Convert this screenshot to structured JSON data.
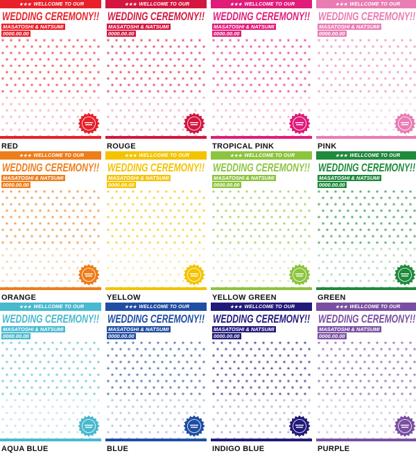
{
  "card_text": {
    "banner": "WELLCOME TO OUR",
    "headline": "WEDDING CEREMONY!!",
    "names": "MASATOSHI & NATSUMI",
    "date": "0000.00.00",
    "banner_stars": "★★★"
  },
  "variants": [
    {
      "label": "RED",
      "color": "#e8202a",
      "light": "#f7b8bc"
    },
    {
      "label": "ROUGE",
      "color": "#d3163f",
      "light": "#f2b2c0"
    },
    {
      "label": "TROPICAL PINK",
      "color": "#e01b7a",
      "light": "#f6b4d3"
    },
    {
      "label": "PINK",
      "color": "#e97cb3",
      "light": "#f8d3e6"
    },
    {
      "label": "ORANGE",
      "color": "#ee7d1b",
      "light": "#f9d3ae"
    },
    {
      "label": "YELLOW",
      "color": "#f4c300",
      "light": "#fbe9a0"
    },
    {
      "label": "YELLOW GREEN",
      "color": "#8cc43e",
      "light": "#d6ecb8"
    },
    {
      "label": "GREEN",
      "color": "#1e8a3c",
      "light": "#b2d9bd"
    },
    {
      "label": "AQUA BLUE",
      "color": "#48b9cf",
      "light": "#c3e7ef"
    },
    {
      "label": "BLUE",
      "color": "#1f4ea3",
      "light": "#b6c6e4"
    },
    {
      "label": "INDIGO BLUE",
      "color": "#221a7a",
      "light": "#b9b6dc"
    },
    {
      "label": "PURPLE",
      "color": "#7a4fa3",
      "light": "#d4c4e3"
    }
  ]
}
